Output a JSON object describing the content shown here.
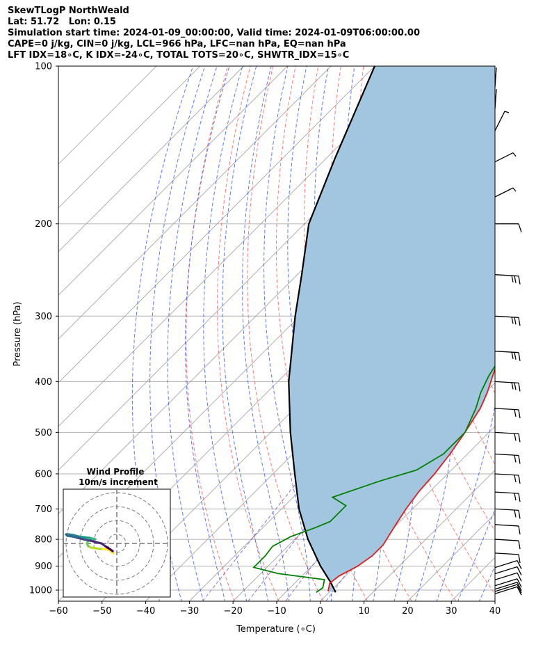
{
  "header": {
    "line1": "SkewTLogP NorthWeald",
    "line2": "Lat: 51.72   Lon: 0.15",
    "line3": "Simulation start time: 2024-01-09_00:00:00, Valid time: 2024-01-09T06:00:00.00",
    "line4": "CAPE=0 j/kg, CIN=0 j/kg, LCL=966 hPa, LFC=nan hPa, EQ=nan hPa",
    "line5": "LFT IDX=18∘C, K IDX=-24∘C, TOTAL TOTS=20∘C, SHWTR_IDX=15∘C"
  },
  "chart_data": {
    "type": "line",
    "title": "SkewTLogP NorthWeald",
    "xlabel": "Temperature (∘C)",
    "ylabel": "Pressure (hPa)",
    "xlim": [
      -60,
      40
    ],
    "ylim": [
      1050,
      100
    ],
    "y_scale": "log",
    "skew_deg": 45,
    "grid": true,
    "x_ticks": [
      -60,
      -50,
      -40,
      -30,
      -20,
      -10,
      0,
      10,
      20,
      30,
      40
    ],
    "x_tick_labels": [
      "−60",
      "−50",
      "−40",
      "−30",
      "−20",
      "−10",
      "0",
      "10",
      "20",
      "30",
      "40"
    ],
    "y_ticks": [
      1000,
      900,
      800,
      700,
      600,
      500,
      400,
      300,
      200,
      100
    ],
    "y_tick_labels": [
      "1000",
      "900",
      "800",
      "700",
      "600",
      "500",
      "400",
      "300",
      "200",
      "100"
    ],
    "colors": {
      "temperature": "#e41a1c",
      "dewpoint": "#008000",
      "parcel": "#000000",
      "fill": "#a3c6e0",
      "dry_adiabats": "#ff4d4d",
      "moist_adiabats": "#3355ff",
      "mixing_ratio": "#7744cc",
      "isotherms": "#a6a6a6"
    },
    "series": [
      {
        "key": "temperature",
        "points": [
          [
            1005,
            -0.5
          ],
          [
            970,
            -2
          ],
          [
            940,
            -1.5
          ],
          [
            900,
            0.5
          ],
          [
            860,
            1.5
          ],
          [
            820,
            1.5
          ],
          [
            780,
            0.5
          ],
          [
            740,
            -0.5
          ],
          [
            700,
            -1.5
          ],
          [
            650,
            -2.5
          ],
          [
            600,
            -3
          ],
          [
            550,
            -4
          ],
          [
            500,
            -5.5
          ],
          [
            450,
            -7.5
          ],
          [
            420,
            -9.5
          ],
          [
            380,
            -13
          ],
          [
            350,
            -15
          ],
          [
            320,
            -17
          ],
          [
            290,
            -19
          ],
          [
            270,
            -19.5
          ],
          [
            255,
            -19.5
          ],
          [
            240,
            -20
          ],
          [
            230,
            -21
          ],
          [
            220,
            -22
          ],
          [
            205,
            -24
          ],
          [
            195,
            -26.5
          ],
          [
            180,
            -31
          ],
          [
            165,
            -35
          ],
          [
            150,
            -39
          ],
          [
            135,
            -43.5
          ],
          [
            120,
            -48
          ],
          [
            110,
            -51
          ],
          [
            100,
            -54
          ]
        ]
      },
      {
        "key": "dewpoint",
        "points": [
          [
            1010,
            -3
          ],
          [
            990,
            -2.5
          ],
          [
            955,
            -4
          ],
          [
            930,
            -16
          ],
          [
            905,
            -23
          ],
          [
            860,
            -23
          ],
          [
            825,
            -23.5
          ],
          [
            790,
            -21.5
          ],
          [
            760,
            -18
          ],
          [
            740,
            -16
          ],
          [
            690,
            -16
          ],
          [
            665,
            -21
          ],
          [
            620,
            -14
          ],
          [
            590,
            -8
          ],
          [
            550,
            -5.5
          ],
          [
            500,
            -5.5
          ],
          [
            450,
            -8.5
          ],
          [
            420,
            -11
          ],
          [
            390,
            -13
          ],
          [
            360,
            -14.5
          ],
          [
            320,
            -17.5
          ],
          [
            290,
            -21
          ],
          [
            250,
            -25
          ],
          [
            225,
            -28
          ],
          [
            205,
            -31
          ],
          [
            190,
            -33
          ],
          [
            180,
            -33.5
          ],
          [
            160,
            -36
          ],
          [
            145,
            -41
          ],
          [
            130,
            -44.5
          ],
          [
            110,
            -50
          ],
          [
            100,
            -54
          ]
        ]
      },
      {
        "key": "parcel",
        "points": [
          [
            1010,
            1.5
          ],
          [
            966,
            -2
          ],
          [
            900,
            -8
          ],
          [
            800,
            -17
          ],
          [
            700,
            -26
          ],
          [
            600,
            -35
          ],
          [
            500,
            -45.5
          ],
          [
            400,
            -57.5
          ],
          [
            300,
            -71
          ],
          [
            250,
            -79
          ],
          [
            200,
            -89
          ],
          [
            150,
            -98
          ],
          [
            100,
            -110
          ]
        ]
      }
    ],
    "wind_barbs_pressures": [
      1010,
      1000,
      990,
      975,
      950,
      925,
      900,
      850,
      800,
      750,
      700,
      650,
      600,
      550,
      500,
      450,
      400,
      350,
      300,
      250,
      200,
      175,
      150,
      125,
      110,
      100
    ],
    "inset": {
      "title": "Wind Profile",
      "subtitle": "10m/s increment",
      "type": "hodograph",
      "colormap": "viridis"
    }
  }
}
